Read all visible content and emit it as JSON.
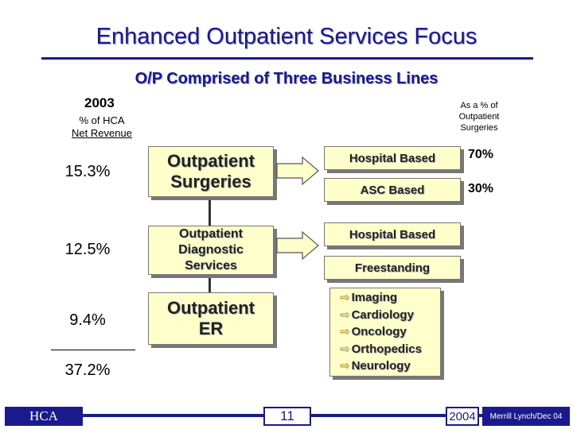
{
  "header": {
    "title": "Enhanced Outpatient Services Focus",
    "subtitle": "O/P Comprised of Three Business Lines"
  },
  "left_column": {
    "year": "2003",
    "caption_line1": "% of HCA",
    "caption_line2": "Net Revenue",
    "values": [
      "15.3%",
      "12.5%",
      "9.4%"
    ],
    "total": "37.2%"
  },
  "right_caption": {
    "line1": "As a % of",
    "line2": "Outpatient",
    "line3": "Surgeries"
  },
  "business_lines": [
    {
      "line1": "Outpatient",
      "line2": "Surgeries"
    },
    {
      "line1": "Outpatient",
      "line2": "Diagnostic",
      "line3": "Services"
    },
    {
      "line1": "Outpatient",
      "line2": "ER"
    }
  ],
  "surgery_split": [
    {
      "label": "Hospital Based",
      "pct": "70%"
    },
    {
      "label": "ASC Based",
      "pct": "30%"
    }
  ],
  "diagnostic_split": [
    {
      "label": "Hospital Based"
    },
    {
      "label": "Freestanding"
    }
  ],
  "services_list": [
    "Imaging",
    "Cardiology",
    "Oncology",
    "Orthopedics",
    "Neurology"
  ],
  "footer": {
    "company": "HCA",
    "page": "11",
    "year": "2004",
    "source": "Merrill Lynch/Dec 04"
  },
  "colors": {
    "title": "#1a1a8c",
    "box_fill": "#ffffcc",
    "footer_bar": "#1a1a8c",
    "bullet_arrow": "#c09a00"
  }
}
